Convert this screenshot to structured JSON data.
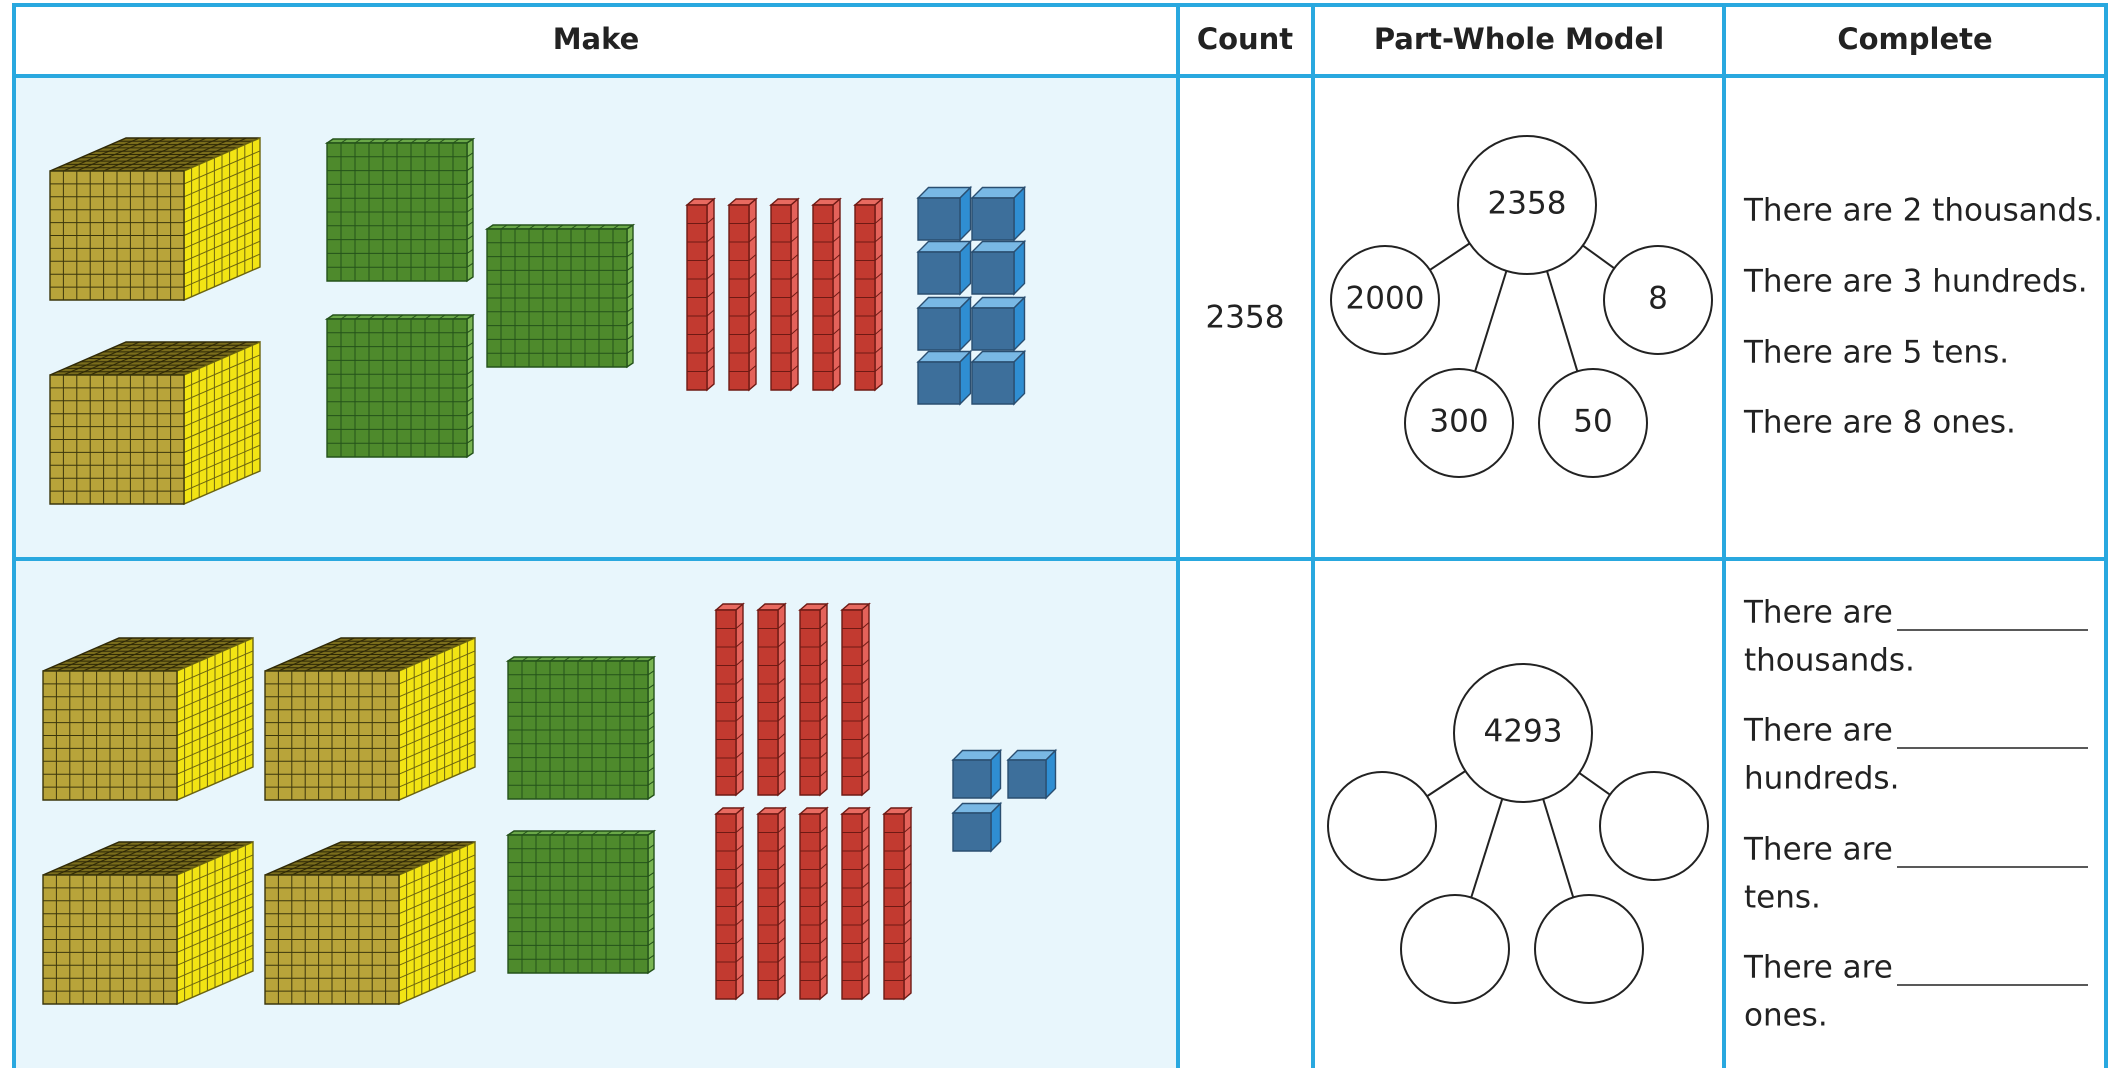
{
  "header": {
    "columns": [
      "Make",
      "Count",
      "Part-Whole Model",
      "Complete"
    ]
  },
  "rows": [
    {
      "count": "2358",
      "part_whole": {
        "whole": "2358",
        "parts": [
          "2000",
          "8",
          "300",
          "50"
        ]
      },
      "complete": [
        "There are 2 thousands.",
        "There are 3 hundreds.",
        "There are 5 tens.",
        "There are 8 ones."
      ]
    },
    {
      "part_whole": {
        "whole": "4293"
      },
      "complete": [
        {
          "before": "There are",
          "after": "thousands."
        },
        {
          "before": "There are",
          "after": "hundreds."
        },
        {
          "before": "There are",
          "after": "tens."
        },
        {
          "before": "There are",
          "after": "ones."
        }
      ]
    }
  ]
}
